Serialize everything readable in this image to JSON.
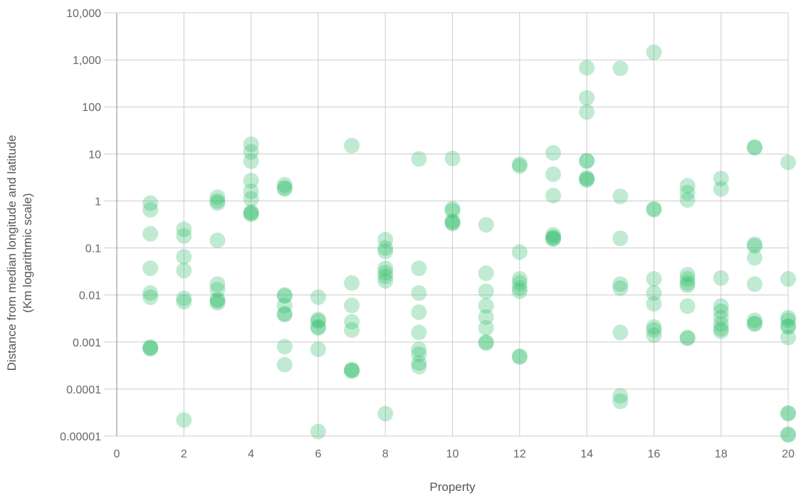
{
  "chart_data": {
    "type": "scatter",
    "title": "",
    "xlabel": "Property",
    "ylabel_lines": [
      "Distance from median longitude and latitude",
      "(Km logarithmic scale)"
    ],
    "y_scale": "log",
    "xlim": [
      0,
      20
    ],
    "ylim": [
      1e-05,
      10000
    ],
    "x_ticks": [
      0,
      2,
      4,
      6,
      8,
      10,
      12,
      14,
      16,
      18,
      20
    ],
    "x_tick_labels": [
      "0",
      "2",
      "4",
      "6",
      "8",
      "10",
      "12",
      "14",
      "16",
      "18",
      "20"
    ],
    "y_ticks": [
      1e-05,
      0.0001,
      0.001,
      0.01,
      0.1,
      1,
      10,
      100,
      1000,
      10000
    ],
    "y_tick_labels": [
      "0.00001",
      "0.0001",
      "0.001",
      "0.01",
      "0.1",
      "1",
      "10",
      "100",
      "1,000",
      "10,000"
    ],
    "grid": true,
    "legend": "none",
    "marker_color": "#2ebd6b",
    "marker_opacity": 0.3,
    "points": [
      {
        "x": 1,
        "y": 0.9
      },
      {
        "x": 1,
        "y": 0.65
      },
      {
        "x": 1,
        "y": 0.2
      },
      {
        "x": 1,
        "y": 0.037
      },
      {
        "x": 1,
        "y": 0.011
      },
      {
        "x": 1,
        "y": 0.009
      },
      {
        "x": 1,
        "y": 0.00075
      },
      {
        "x": 1,
        "y": 0.00072
      },
      {
        "x": 1,
        "y": 0.00078
      },
      {
        "x": 2,
        "y": 0.25
      },
      {
        "x": 2,
        "y": 0.18
      },
      {
        "x": 2,
        "y": 0.065
      },
      {
        "x": 2,
        "y": 0.033
      },
      {
        "x": 2,
        "y": 0.0085
      },
      {
        "x": 2,
        "y": 0.0072
      },
      {
        "x": 2,
        "y": 2.2e-05
      },
      {
        "x": 3,
        "y": 1.2
      },
      {
        "x": 3,
        "y": 1.0
      },
      {
        "x": 3,
        "y": 0.9
      },
      {
        "x": 3,
        "y": 0.145
      },
      {
        "x": 3,
        "y": 0.017
      },
      {
        "x": 3,
        "y": 0.013
      },
      {
        "x": 3,
        "y": 0.008
      },
      {
        "x": 3,
        "y": 0.0068
      },
      {
        "x": 3,
        "y": 0.0075
      },
      {
        "x": 4,
        "y": 16
      },
      {
        "x": 4,
        "y": 11
      },
      {
        "x": 4,
        "y": 7
      },
      {
        "x": 4,
        "y": 2.7
      },
      {
        "x": 4,
        "y": 1.6
      },
      {
        "x": 4,
        "y": 1.1
      },
      {
        "x": 4,
        "y": 0.55
      },
      {
        "x": 4,
        "y": 0.58
      },
      {
        "x": 4,
        "y": 0.52
      },
      {
        "x": 5,
        "y": 2.2
      },
      {
        "x": 5,
        "y": 1.9
      },
      {
        "x": 5,
        "y": 1.8
      },
      {
        "x": 5,
        "y": 0.01
      },
      {
        "x": 5,
        "y": 0.0095
      },
      {
        "x": 5,
        "y": 0.006
      },
      {
        "x": 5,
        "y": 0.004
      },
      {
        "x": 5,
        "y": 0.0038
      },
      {
        "x": 5,
        "y": 0.0008
      },
      {
        "x": 5,
        "y": 0.00033
      },
      {
        "x": 6,
        "y": 0.009
      },
      {
        "x": 6,
        "y": 0.003
      },
      {
        "x": 6,
        "y": 0.0028
      },
      {
        "x": 6,
        "y": 0.0021
      },
      {
        "x": 6,
        "y": 0.002
      },
      {
        "x": 6,
        "y": 0.0007
      },
      {
        "x": 6,
        "y": 1.25e-05
      },
      {
        "x": 7,
        "y": 15
      },
      {
        "x": 7,
        "y": 0.018
      },
      {
        "x": 7,
        "y": 0.006
      },
      {
        "x": 7,
        "y": 0.0027
      },
      {
        "x": 7,
        "y": 0.0018
      },
      {
        "x": 7,
        "y": 0.00026
      },
      {
        "x": 7,
        "y": 0.00025
      },
      {
        "x": 7,
        "y": 0.00024
      },
      {
        "x": 8,
        "y": 0.15
      },
      {
        "x": 8,
        "y": 0.1
      },
      {
        "x": 8,
        "y": 0.085
      },
      {
        "x": 8,
        "y": 0.037
      },
      {
        "x": 8,
        "y": 0.03
      },
      {
        "x": 8,
        "y": 0.025
      },
      {
        "x": 8,
        "y": 0.02
      },
      {
        "x": 8,
        "y": 3e-05
      },
      {
        "x": 9,
        "y": 7.8
      },
      {
        "x": 9,
        "y": 0.037
      },
      {
        "x": 9,
        "y": 0.011
      },
      {
        "x": 9,
        "y": 0.0043
      },
      {
        "x": 9,
        "y": 0.0016
      },
      {
        "x": 9,
        "y": 0.0007
      },
      {
        "x": 9,
        "y": 0.00055
      },
      {
        "x": 9,
        "y": 0.00036
      },
      {
        "x": 9,
        "y": 0.0003
      },
      {
        "x": 10,
        "y": 8
      },
      {
        "x": 10,
        "y": 0.68
      },
      {
        "x": 10,
        "y": 0.62
      },
      {
        "x": 10,
        "y": 0.37
      },
      {
        "x": 10,
        "y": 0.35
      },
      {
        "x": 10,
        "y": 0.33
      },
      {
        "x": 11,
        "y": 0.31
      },
      {
        "x": 11,
        "y": 0.029
      },
      {
        "x": 11,
        "y": 0.012
      },
      {
        "x": 11,
        "y": 0.0059
      },
      {
        "x": 11,
        "y": 0.0034
      },
      {
        "x": 11,
        "y": 0.002
      },
      {
        "x": 11,
        "y": 0.001
      },
      {
        "x": 11,
        "y": 0.00095
      },
      {
        "x": 12,
        "y": 6
      },
      {
        "x": 12,
        "y": 5.5
      },
      {
        "x": 12,
        "y": 0.082
      },
      {
        "x": 12,
        "y": 0.022
      },
      {
        "x": 12,
        "y": 0.018
      },
      {
        "x": 12,
        "y": 0.014
      },
      {
        "x": 12,
        "y": 0.012
      },
      {
        "x": 12,
        "y": 0.0005
      },
      {
        "x": 12,
        "y": 0.00048
      },
      {
        "x": 13,
        "y": 10.5
      },
      {
        "x": 13,
        "y": 3.7
      },
      {
        "x": 13,
        "y": 1.3
      },
      {
        "x": 13,
        "y": 0.19
      },
      {
        "x": 13,
        "y": 0.17
      },
      {
        "x": 13,
        "y": 0.16
      },
      {
        "x": 13,
        "y": 0.155
      },
      {
        "x": 14,
        "y": 680
      },
      {
        "x": 14,
        "y": 155
      },
      {
        "x": 14,
        "y": 78
      },
      {
        "x": 14,
        "y": 7.2
      },
      {
        "x": 14,
        "y": 7
      },
      {
        "x": 14,
        "y": 3.1
      },
      {
        "x": 14,
        "y": 2.9
      },
      {
        "x": 14,
        "y": 2.8
      },
      {
        "x": 15,
        "y": 660
      },
      {
        "x": 15,
        "y": 1.25
      },
      {
        "x": 15,
        "y": 0.16
      },
      {
        "x": 15,
        "y": 0.017
      },
      {
        "x": 15,
        "y": 0.014
      },
      {
        "x": 15,
        "y": 0.0016
      },
      {
        "x": 15,
        "y": 7.2e-05
      },
      {
        "x": 15,
        "y": 5.5e-05
      },
      {
        "x": 16,
        "y": 1450
      },
      {
        "x": 16,
        "y": 0.68
      },
      {
        "x": 16,
        "y": 0.65
      },
      {
        "x": 16,
        "y": 0.022
      },
      {
        "x": 16,
        "y": 0.011
      },
      {
        "x": 16,
        "y": 0.0065
      },
      {
        "x": 16,
        "y": 0.0021
      },
      {
        "x": 16,
        "y": 0.0018
      },
      {
        "x": 16,
        "y": 0.0014
      },
      {
        "x": 17,
        "y": 2.1
      },
      {
        "x": 17,
        "y": 1.5
      },
      {
        "x": 17,
        "y": 1.05
      },
      {
        "x": 17,
        "y": 0.027
      },
      {
        "x": 17,
        "y": 0.022
      },
      {
        "x": 17,
        "y": 0.018
      },
      {
        "x": 17,
        "y": 0.016
      },
      {
        "x": 17,
        "y": 0.0058
      },
      {
        "x": 17,
        "y": 0.00125
      },
      {
        "x": 17,
        "y": 0.0012
      },
      {
        "x": 18,
        "y": 3
      },
      {
        "x": 18,
        "y": 1.8
      },
      {
        "x": 18,
        "y": 0.023
      },
      {
        "x": 18,
        "y": 0.0058
      },
      {
        "x": 18,
        "y": 0.0045
      },
      {
        "x": 18,
        "y": 0.0033
      },
      {
        "x": 18,
        "y": 0.0024
      },
      {
        "x": 18,
        "y": 0.0019
      },
      {
        "x": 18,
        "y": 0.0017
      },
      {
        "x": 19,
        "y": 14
      },
      {
        "x": 19,
        "y": 13.5
      },
      {
        "x": 19,
        "y": 0.12
      },
      {
        "x": 19,
        "y": 0.11
      },
      {
        "x": 19,
        "y": 0.062
      },
      {
        "x": 19,
        "y": 0.017
      },
      {
        "x": 19,
        "y": 0.0029
      },
      {
        "x": 19,
        "y": 0.0025
      },
      {
        "x": 19,
        "y": 0.0024
      },
      {
        "x": 20,
        "y": 6.6
      },
      {
        "x": 20,
        "y": 0.022
      },
      {
        "x": 20,
        "y": 0.0033
      },
      {
        "x": 20,
        "y": 0.0029
      },
      {
        "x": 20,
        "y": 0.0022
      },
      {
        "x": 20,
        "y": 0.0021
      },
      {
        "x": 20,
        "y": 0.00125
      },
      {
        "x": 20,
        "y": 3e-05
      },
      {
        "x": 20,
        "y": 3.1e-05
      },
      {
        "x": 20,
        "y": 1.05e-05
      },
      {
        "x": 20,
        "y": 1.1e-05
      }
    ]
  }
}
